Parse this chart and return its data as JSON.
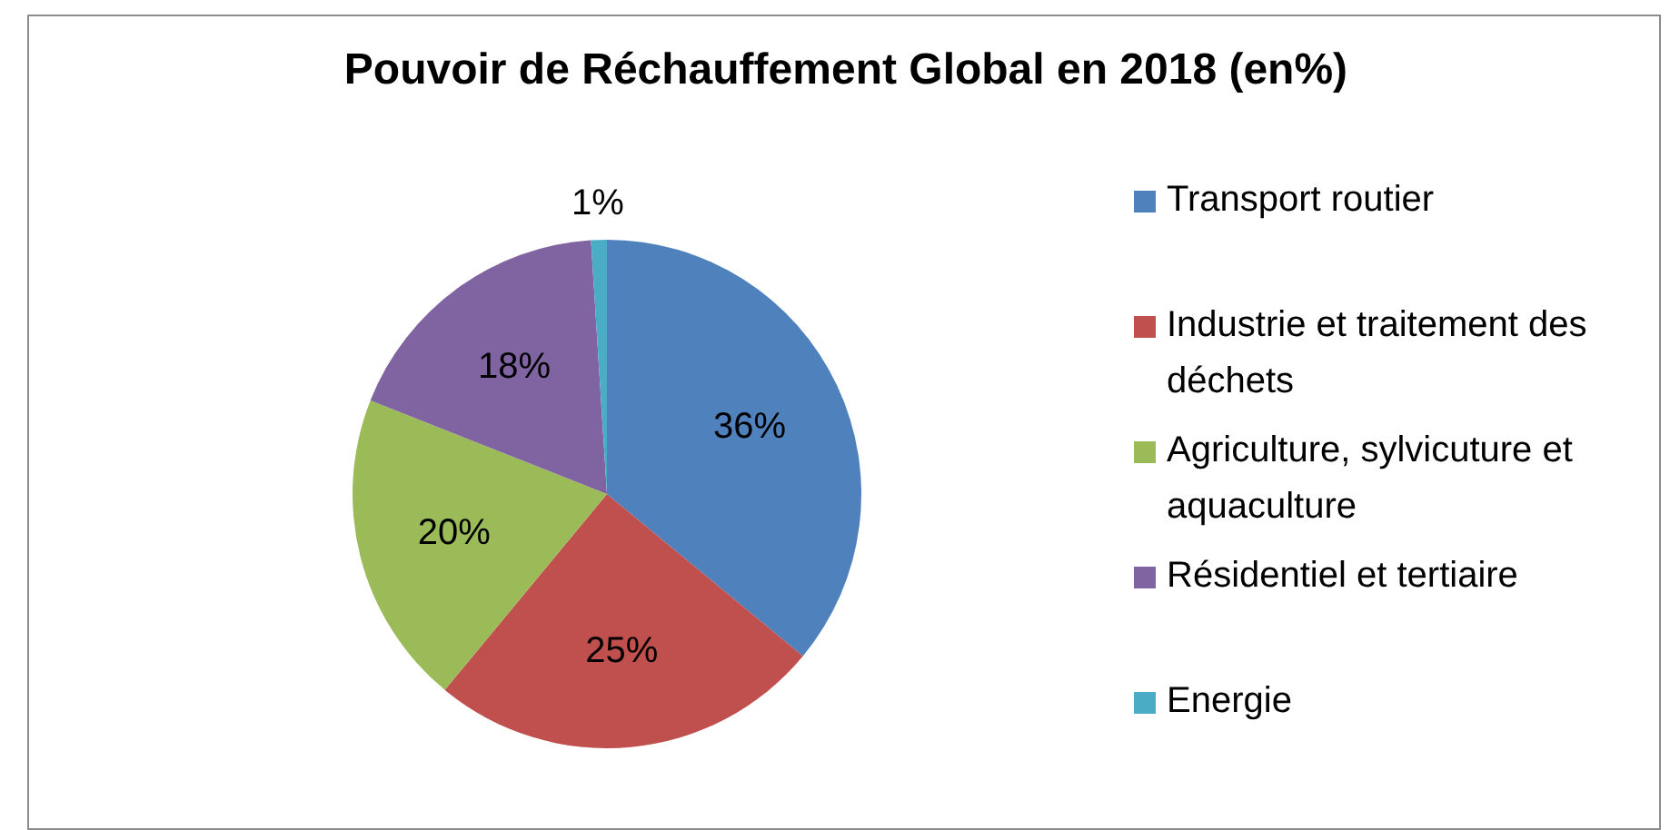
{
  "chart_data": {
    "type": "pie",
    "title": "Pouvoir de Réchauffement Global en 2018 (en%)",
    "categories": [
      "Transport routier",
      "Industrie et traitement des déchets",
      "Agriculture, sylvicuture et aquaculture",
      "Résidentiel et tertiaire",
      "Energie"
    ],
    "values": [
      36,
      25,
      20,
      18,
      1
    ],
    "colors": [
      "#4f81bd",
      "#c0504d",
      "#9bbb59",
      "#8064a2",
      "#4bacc6"
    ],
    "value_labels": [
      "36%",
      "25%",
      "20%",
      "18%",
      "1%"
    ],
    "legend": "right"
  }
}
